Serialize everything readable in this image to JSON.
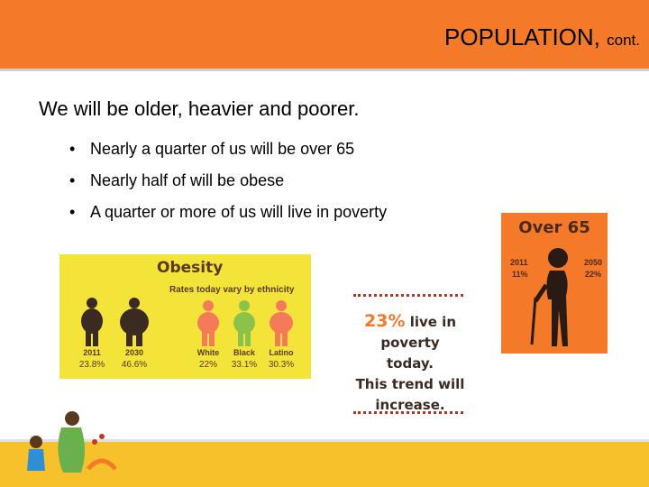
{
  "header": {
    "title": "POPULATION,",
    "title_suffix": "cont."
  },
  "subtitle": "We will be older, heavier and poorer.",
  "bullets": [
    "Nearly a quarter of us will be over 65",
    "Nearly half of will be obese",
    "A quarter or more of us will live in poverty"
  ],
  "obesity": {
    "title": "Obesity",
    "subtitle": "Rates today vary by ethnicity",
    "figures": [
      {
        "label": "2011",
        "value": "23.8%",
        "color": "#3a2a22"
      },
      {
        "label": "2030",
        "value": "46.6%",
        "color": "#3a2a22"
      },
      {
        "label": "White",
        "value": "22%",
        "color": "#f47a5a"
      },
      {
        "label": "Black",
        "value": "33.1%",
        "color": "#8bc34a"
      },
      {
        "label": "Latino",
        "value": "30.3%",
        "color": "#f47a5a"
      }
    ]
  },
  "poverty": {
    "percent": "23%",
    "line1": "live in",
    "line2": "poverty today.",
    "line3": "This trend will",
    "line4": "increase."
  },
  "over65": {
    "title": "Over 65",
    "year_left": "2011",
    "value_left": "11%",
    "year_right": "2050",
    "value_right": "22%"
  },
  "colors": {
    "accent": "#f47a2a",
    "obesity_bg": "#f4e43a",
    "bottom_bar": "#f6c12a"
  }
}
